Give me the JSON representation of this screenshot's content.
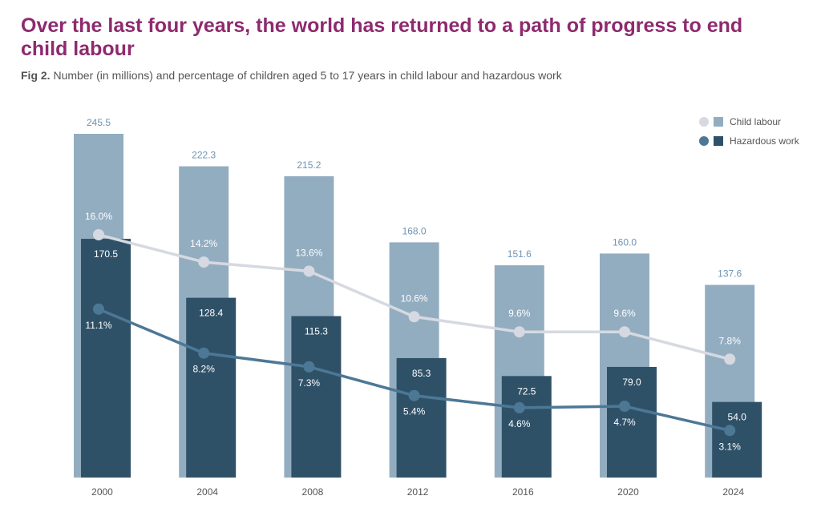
{
  "header": {
    "title": "Over the last four years, the world has returned to a path of progress to end child labour",
    "fig_label": "Fig 2.",
    "subtitle": "Number (in millions) and percentage of children aged 5 to 17 years in child labour and hazardous work"
  },
  "legend": {
    "child_labour": "Child labour",
    "hazardous_work": "Hazardous work"
  },
  "colors": {
    "child_bar": "#93adc0",
    "child_label": "#6f93b5",
    "child_line": "#d6d9e1",
    "haz_bar": "#2f5168",
    "haz_line": "#4c7896",
    "pct_text_on_light": "#ffffff",
    "axis_text": "#555555",
    "title": "#8e2a6e"
  },
  "chart_data": {
    "type": "bar",
    "title": "Over the last four years, the world has returned to a path of progress to end child labour",
    "xlabel": "",
    "ylabel": "",
    "categories": [
      "2000",
      "2004",
      "2008",
      "2012",
      "2016",
      "2020",
      "2024"
    ],
    "series": [
      {
        "name": "Child labour",
        "kind": "bar",
        "unit": "millions",
        "values": [
          245.5,
          222.3,
          215.2,
          168.0,
          151.6,
          160.0,
          137.6
        ],
        "labels": [
          "245.5",
          "222.3",
          "215.2",
          "168.0",
          "151.6",
          "160.0",
          "137.6"
        ]
      },
      {
        "name": "Hazardous work",
        "kind": "bar",
        "unit": "millions",
        "values": [
          170.5,
          128.4,
          115.3,
          85.3,
          72.5,
          79.0,
          54.0
        ],
        "labels": [
          "170.5",
          "128.4",
          "115.3",
          "85.3",
          "72.5",
          "79.0",
          "54.0"
        ]
      },
      {
        "name": "Child labour",
        "kind": "line",
        "unit": "percent",
        "values": [
          16.0,
          14.2,
          13.6,
          10.6,
          9.6,
          9.6,
          7.8
        ],
        "labels": [
          "16.0%",
          "14.2%",
          "13.6%",
          "10.6%",
          "9.6%",
          "9.6%",
          "7.8%"
        ]
      },
      {
        "name": "Hazardous work",
        "kind": "line",
        "unit": "percent",
        "values": [
          11.1,
          8.2,
          7.3,
          5.4,
          4.6,
          4.7,
          3.1
        ],
        "labels": [
          "11.1%",
          "8.2%",
          "7.3%",
          "5.4%",
          "4.6%",
          "4.7%",
          "3.1%"
        ]
      }
    ],
    "ylim": [
      0,
      245.5
    ],
    "grid": false,
    "legend_position": "top-right"
  }
}
